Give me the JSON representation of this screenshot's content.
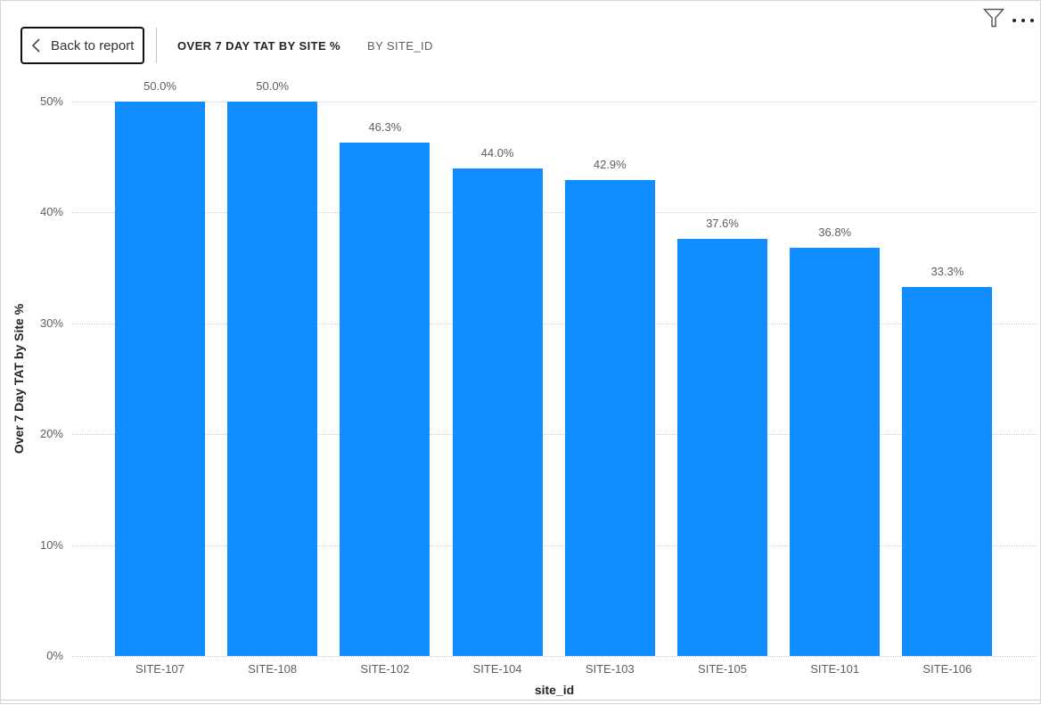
{
  "header": {
    "back_label": "Back to report",
    "title": "OVER 7 DAY TAT BY SITE %",
    "subtitle": "BY SITE_ID"
  },
  "toolbar": {
    "icons": [
      "filter-icon",
      "more-options-icon"
    ]
  },
  "chart_data": {
    "type": "bar",
    "title": "OVER 7 DAY TAT BY SITE %",
    "subtitle": "BY SITE_ID",
    "categories": [
      "SITE-107",
      "SITE-108",
      "SITE-102",
      "SITE-104",
      "SITE-103",
      "SITE-105",
      "SITE-101",
      "SITE-106"
    ],
    "values": [
      50.0,
      50.0,
      46.3,
      44.0,
      42.9,
      37.6,
      36.8,
      33.3
    ],
    "data_labels": [
      "50.0%",
      "50.0%",
      "46.3%",
      "44.0%",
      "42.9%",
      "37.6%",
      "36.8%",
      "33.3%"
    ],
    "xlabel": "site_id",
    "ylabel": "Over 7 Day TAT by Site %",
    "ylim": [
      0,
      50
    ],
    "yticks": [
      0,
      10,
      20,
      30,
      40,
      50
    ],
    "ytick_labels": [
      "0%",
      "10%",
      "20%",
      "30%",
      "40%",
      "50%"
    ],
    "grid": "horizontal-dotted",
    "legend": "none",
    "bar_color": "#118DFF",
    "label_color": "#605E5C",
    "axis_title_color": "#252423",
    "gridline_color": "#CBCBCB"
  }
}
